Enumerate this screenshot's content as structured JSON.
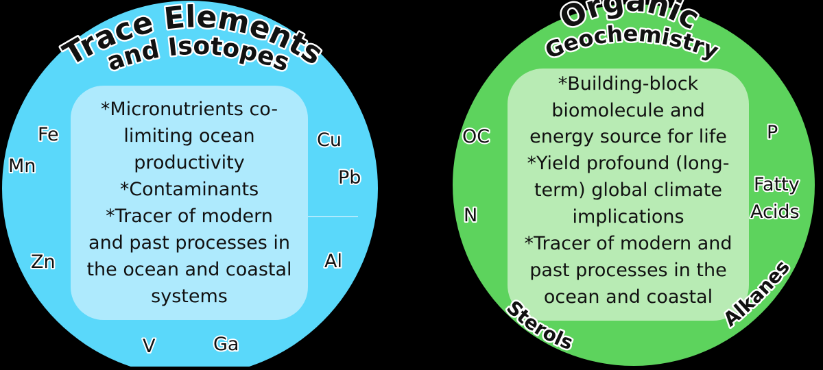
{
  "colors": {
    "background": "#000000",
    "left_circle": "#5ad8fa",
    "left_box": "#aeeafd",
    "right_circle": "#5dd35d",
    "right_box": "#b8ebb4",
    "text": "#111111",
    "outline": "#ffffff"
  },
  "left": {
    "title_line1": "Trace Elements",
    "title_line2": "and Isotopes",
    "description": [
      "*Micronutrients co-",
      "limiting ocean",
      "productivity",
      "*Contaminants",
      "*Tracer of modern",
      "and past processes in",
      "the ocean and coastal",
      "systems"
    ],
    "elements": {
      "fe": "Fe",
      "mn": "Mn",
      "zn": "Zn",
      "v": "V",
      "ga": "Ga",
      "al": "Al",
      "pb": "Pb",
      "cu": "Cu"
    }
  },
  "right": {
    "title_line1": "Organic",
    "title_line2": "Geochemistry",
    "description": [
      "*Building-block",
      "biomolecule and",
      "energy source for life",
      "*Yield profound (long-",
      "term) global climate",
      "implications",
      "*Tracer of modern and",
      "past processes in the",
      "ocean and coastal"
    ],
    "elements": {
      "oc": "OC",
      "n": "N",
      "p": "P",
      "fatty_line1": "Fatty",
      "fatty_line2": "Acids",
      "sterols": "Sterols",
      "alkanes": "Alkanes"
    }
  }
}
